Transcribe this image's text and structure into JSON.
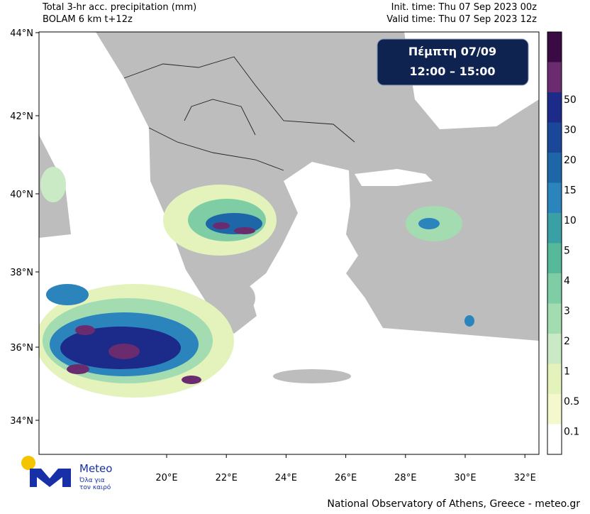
{
  "header": {
    "title_line1": "Total 3-hr acc. precipitation (mm)",
    "title_line2": "BOLAM 6 km t+12z",
    "init_time": "Init. time: Thu 07 Sep 2023 00z",
    "valid_time": "Valid time: Thu 07 Sep 2023 12z"
  },
  "period_box": {
    "day": "Πέμπτη 07/09",
    "hours": "12:00 – 15:00"
  },
  "lat_ticks": [
    "44°N",
    "42°N",
    "40°N",
    "38°N",
    "36°N",
    "34°N"
  ],
  "lon_ticks": [
    "20°E",
    "22°E",
    "24°E",
    "26°E",
    "28°E",
    "30°E",
    "32°E"
  ],
  "colorbar": {
    "levels": [
      0.1,
      0.5,
      1,
      2,
      3,
      4,
      5,
      10,
      15,
      20,
      30,
      50
    ],
    "colors": [
      "#ffffff",
      "#f5f8cc",
      "#e4f2bc",
      "#c9eac4",
      "#a4dcb2",
      "#7ecda4",
      "#55b99a",
      "#3b9fa6",
      "#2b84bb",
      "#1d66a8",
      "#1a4797",
      "#1c2a8a",
      "#6a2c6e",
      "#3a0a44"
    ]
  },
  "logo": {
    "name": "Meteo",
    "tagline_1": "Όλα για",
    "tagline_2": "τον καιρό"
  },
  "footer": "National Observatory of Athens, Greece - meteo.gr"
}
